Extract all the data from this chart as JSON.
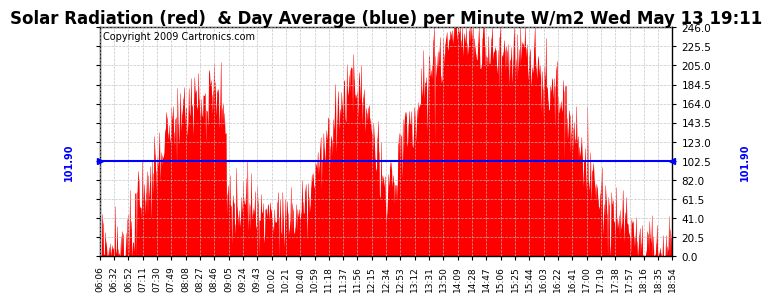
{
  "title": "Solar Radiation (red)  & Day Average (blue) per Minute W/m2 Wed May 13 19:11",
  "copyright": "Copyright 2009 Cartronics.com",
  "day_average": 101.9,
  "ylim": [
    0.0,
    246.0
  ],
  "yticks": [
    0.0,
    20.5,
    41.0,
    61.5,
    82.0,
    102.5,
    123.0,
    143.5,
    164.0,
    184.5,
    205.0,
    225.5,
    246.0
  ],
  "bar_color": "#FF0000",
  "avg_line_color": "#0000FF",
  "bg_color": "#FFFFFF",
  "grid_color": "#C0C0C0",
  "title_fontsize": 12,
  "copyright_fontsize": 7,
  "x_label_fontsize": 6.5,
  "y_label_fontsize": 7.5,
  "avg_label": "101.90",
  "xtick_labels": [
    "06:06",
    "06:32",
    "06:52",
    "07:11",
    "07:30",
    "07:49",
    "08:08",
    "08:27",
    "08:46",
    "09:05",
    "09:24",
    "09:43",
    "10:02",
    "10:21",
    "10:40",
    "10:59",
    "11:18",
    "11:37",
    "11:56",
    "12:15",
    "12:34",
    "12:53",
    "13:12",
    "13:31",
    "13:50",
    "14:09",
    "14:28",
    "14:47",
    "15:06",
    "15:25",
    "15:44",
    "16:03",
    "16:22",
    "16:41",
    "17:00",
    "17:19",
    "17:38",
    "17:57",
    "18:16",
    "18:35",
    "18:54"
  ]
}
